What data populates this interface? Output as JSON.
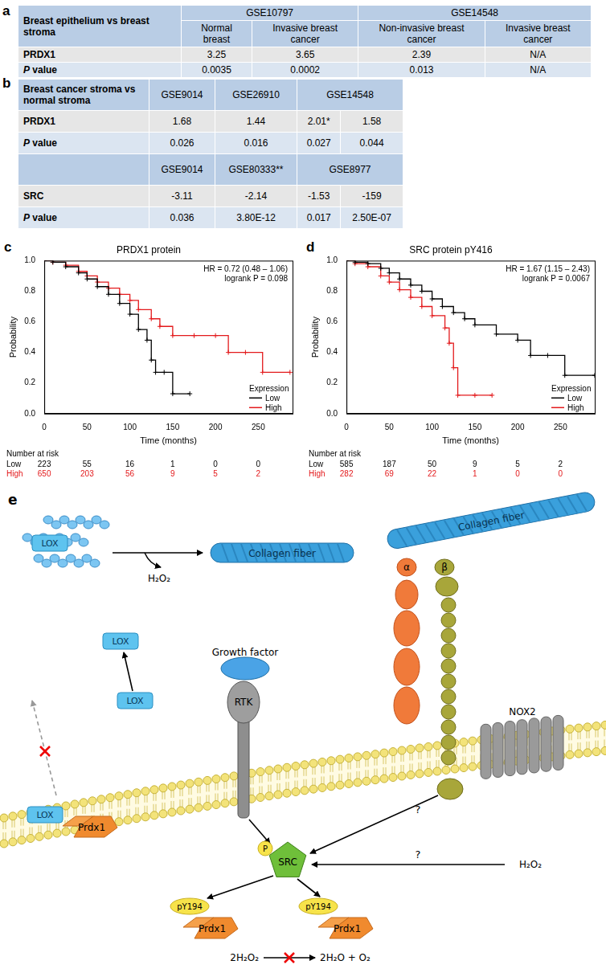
{
  "table_a": {
    "panel_label": "a",
    "corner": "Breast epithelium vs breast stroma",
    "groups": [
      {
        "name": "GSE10797",
        "columns": [
          "Normal breast",
          "Invasive breast cancer"
        ]
      },
      {
        "name": "GSE14548",
        "columns": [
          "Non-invasive breast cancer",
          "Invasive breast cancer"
        ]
      }
    ],
    "rows": [
      {
        "label": "PRDX1",
        "cells": [
          "3.25",
          "3.65",
          "2.39",
          "N/A"
        ]
      },
      {
        "label": "P value",
        "cells": [
          "0.0035",
          "0.0002",
          "0.013",
          "N/A"
        ]
      }
    ]
  },
  "table_b": {
    "panel_label": "b",
    "corner": "Breast cancer stroma  vs normal stroma",
    "p_label": "P value",
    "sections": [
      {
        "gene": "PRDX1",
        "datasets": [
          {
            "name": "GSE9014",
            "fold_changes": [
              "1.68"
            ],
            "p_values": [
              "0.026"
            ]
          },
          {
            "name": "GSE26910",
            "fold_changes": [
              "1.44"
            ],
            "p_values": [
              "0.016"
            ]
          },
          {
            "name": "GSE14548",
            "fold_changes": [
              "2.01*",
              "1.58"
            ],
            "p_values": [
              "0.027",
              "0.044"
            ]
          }
        ]
      },
      {
        "gene": "SRC",
        "datasets": [
          {
            "name": "GSE9014",
            "fold_changes": [
              "-3.11"
            ],
            "p_values": [
              "0.036"
            ]
          },
          {
            "name": "GSE80333**",
            "fold_changes": [
              "-2.14"
            ],
            "p_values": [
              "3.80E-12"
            ]
          },
          {
            "name": "GSE8977",
            "fold_changes": [
              "-1.53",
              "-159"
            ],
            "p_values": [
              "0.017",
              "2.50E-07"
            ]
          }
        ]
      }
    ]
  },
  "chart_data": [
    {
      "panel_label": "c",
      "type": "line",
      "title": "PRDX1 protein",
      "x_label": "Time (months)",
      "y_label": "Probability",
      "xlim": [
        0,
        290
      ],
      "xticks": [
        0,
        50,
        100,
        150,
        200,
        250
      ],
      "ylim": [
        0,
        1
      ],
      "yticks": [
        {
          "value": 0,
          "label": "0.0"
        },
        0.2,
        0.4,
        0.6,
        0.8,
        {
          "value": 1,
          "label": "1.0"
        }
      ],
      "grid": false,
      "line_style": "stepped",
      "marker": "cross",
      "legend": "lower right",
      "legend_title": "Expression",
      "annotations": [
        "HR = 0.72 (0.48 – 1.06)",
        "logrank P = 0.098"
      ],
      "series": [
        {
          "name": "Low",
          "color": "#000000",
          "x": [
            0,
            10,
            25,
            40,
            50,
            62,
            75,
            88,
            100,
            110,
            120,
            125,
            130,
            140,
            150,
            170
          ],
          "values": [
            1.0,
            0.99,
            0.96,
            0.92,
            0.88,
            0.83,
            0.78,
            0.72,
            0.65,
            0.55,
            0.48,
            0.35,
            0.27,
            0.27,
            0.13,
            0.13
          ]
        },
        {
          "name": "High",
          "color": "#e31a1c",
          "x": [
            0,
            10,
            25,
            40,
            50,
            62,
            75,
            88,
            100,
            110,
            125,
            135,
            150,
            175,
            200,
            215,
            235,
            255,
            287
          ],
          "values": [
            1.0,
            0.99,
            0.97,
            0.93,
            0.9,
            0.86,
            0.82,
            0.78,
            0.74,
            0.68,
            0.62,
            0.57,
            0.51,
            0.51,
            0.51,
            0.4,
            0.4,
            0.27,
            0.27
          ]
        }
      ],
      "risk_table": {
        "title": "Number at risk",
        "x": [
          0,
          50,
          100,
          150,
          200,
          250
        ],
        "rows": [
          {
            "name": "Low",
            "color": "#000000",
            "values": [
              223,
              55,
              16,
              1,
              0,
              0
            ]
          },
          {
            "name": "High",
            "color": "#e31a1c",
            "values": [
              650,
              203,
              56,
              9,
              5,
              2
            ]
          }
        ]
      }
    },
    {
      "panel_label": "d",
      "type": "line",
      "title": "SRC protein pY416",
      "x_label": "Time (months)",
      "y_label": "Probability",
      "xlim": [
        0,
        290
      ],
      "xticks": [
        0,
        50,
        100,
        150,
        200,
        250
      ],
      "ylim": [
        0,
        1
      ],
      "yticks": [
        {
          "value": 0,
          "label": "0.0"
        },
        0.2,
        0.4,
        0.6,
        0.8,
        {
          "value": 1,
          "label": "1.0"
        }
      ],
      "grid": false,
      "line_style": "stepped",
      "marker": "cross",
      "legend": "lower right",
      "legend_title": "Expression",
      "annotations": [
        "HR = 1.67 (1.15 – 2.43)",
        "logrank P = 0.0067"
      ],
      "series": [
        {
          "name": "Low",
          "color": "#000000",
          "x": [
            0,
            10,
            25,
            40,
            50,
            62,
            75,
            88,
            100,
            112,
            125,
            138,
            150,
            175,
            200,
            215,
            235,
            255,
            290
          ],
          "values": [
            1.0,
            0.99,
            0.98,
            0.95,
            0.92,
            0.88,
            0.84,
            0.8,
            0.75,
            0.7,
            0.66,
            0.62,
            0.58,
            0.52,
            0.48,
            0.38,
            0.38,
            0.25,
            0.25
          ]
        },
        {
          "name": "High",
          "color": "#e31a1c",
          "x": [
            0,
            10,
            25,
            40,
            50,
            62,
            75,
            88,
            100,
            115,
            120,
            125,
            130,
            150,
            170
          ],
          "values": [
            1.0,
            0.98,
            0.96,
            0.9,
            0.86,
            0.81,
            0.76,
            0.7,
            0.64,
            0.56,
            0.46,
            0.3,
            0.12,
            0.12,
            0.12
          ]
        }
      ],
      "risk_table": {
        "title": "Number at risk",
        "x": [
          0,
          50,
          100,
          150,
          200,
          250
        ],
        "rows": [
          {
            "name": "Low",
            "color": "#000000",
            "values": [
              585,
              187,
              50,
              9,
              5,
              2
            ]
          },
          {
            "name": "High",
            "color": "#e31a1c",
            "values": [
              282,
              69,
              22,
              1,
              0,
              0
            ]
          }
        ]
      }
    }
  ],
  "diagram": {
    "panel_label": "e",
    "lox_reaction": {
      "enzyme": "LOX",
      "product": "Collagen fiber",
      "byproduct": "H₂O₂"
    },
    "collagen_fiber": "Collagen fiber",
    "integrin": {
      "alpha": "α",
      "beta": "β"
    },
    "secreted_lox": [
      "LOX",
      "LOX"
    ],
    "blocked_lox": "LOX",
    "lox_binding_partner": "Prdx1",
    "growth_factor": "Growth factor",
    "receptor": "RTK",
    "kinase": "SRC",
    "phospho": "P",
    "oxidase": "NOX2",
    "oxidant": "H₂O₂",
    "unknown_links": [
      "?",
      "?"
    ],
    "phospho_sites": [
      "pY194",
      "pY194"
    ],
    "substrates": [
      "Prdx1",
      "Prdx1"
    ],
    "reaction": {
      "reactant": "2H₂O₂",
      "products": "2H₂O + O₂"
    }
  }
}
